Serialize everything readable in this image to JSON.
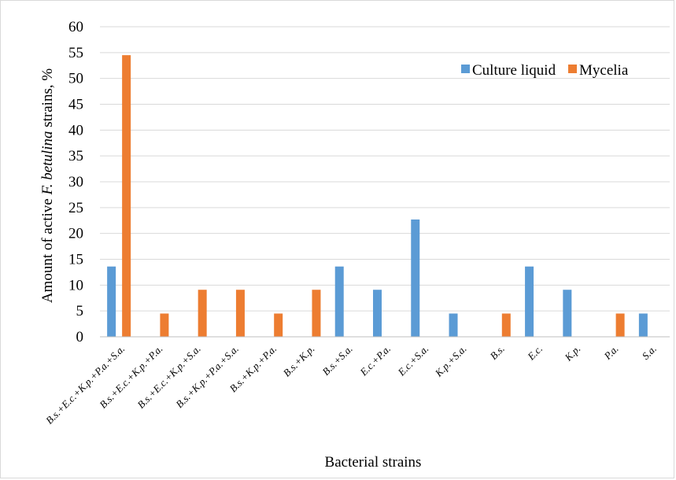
{
  "chart_data": {
    "type": "bar",
    "categories": [
      "B.s.+E.c.+K.p.+P.a.+S.a.",
      "B.s.+E.c.+K.p.+P.a.",
      "B.s.+E.c.+K.p.+S.a.",
      "B.s.+K.p.+P.a.+S.a.",
      "B.s.+K.p.+P.a.",
      "B.s.+K.p.",
      "B.s.+S.a.",
      "E.c.+P.a.",
      "E.c.+S.a.",
      "K.p.+S.a.",
      "B.s.",
      "E.c.",
      "K.p.",
      "P.a.",
      "S.a."
    ],
    "series": [
      {
        "name": "Culture liquid",
        "color": "#5b9bd5",
        "values": [
          13.6,
          0,
          0,
          0,
          0,
          0,
          13.6,
          9.1,
          22.7,
          4.5,
          0,
          13.6,
          9.1,
          0,
          4.5
        ]
      },
      {
        "name": "Mycelia",
        "color": "#ed7d31",
        "values": [
          54.5,
          4.5,
          9.1,
          9.1,
          4.5,
          9.1,
          0,
          0,
          0,
          0,
          4.5,
          0,
          0,
          4.5,
          0
        ]
      }
    ],
    "xlabel": "Bacterial strains",
    "ylabel_prefix": "Amount of active ",
    "ylabel_italic": "F. betulina",
    "ylabel_suffix": " strains, %",
    "ylim": [
      0,
      60
    ],
    "yticks": [
      0,
      5,
      10,
      15,
      20,
      25,
      30,
      35,
      40,
      45,
      50,
      55,
      60
    ],
    "grid": true,
    "legend_position": "top-right"
  }
}
